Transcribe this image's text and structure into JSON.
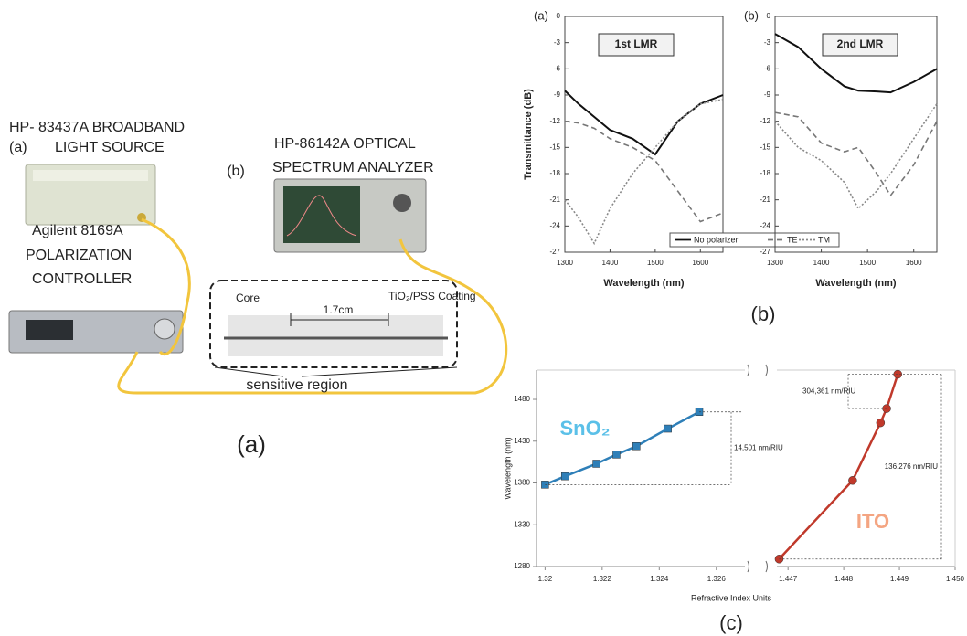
{
  "diagram": {
    "texts": [
      "HP- 83437A BROADBAND",
      "(a)",
      "LIGHT SOURCE",
      "(b)",
      "HP-86142A OPTICAL",
      "SPECTRUM ANALYZER",
      "Agilent 8169A",
      "POLARIZATION",
      "CONTROLLER",
      "Core",
      "1.7cm",
      "TiO₂/PSS Coating",
      "sensitive region",
      "(a)"
    ]
  },
  "chart_data": [
    {
      "type": "line",
      "panel_label": "(a)",
      "box_label": "1st LMR",
      "x_label": "Wavelength (nm)",
      "y_label": "Transmittance (dB)",
      "xlim": [
        1300,
        1650
      ],
      "xticks": [
        1300,
        1400,
        1500,
        1600
      ],
      "ylim": [
        -27,
        0
      ],
      "yticks": [
        0,
        -3,
        -6,
        -9,
        -12,
        -15,
        -18,
        -21,
        -24,
        -27
      ],
      "x": [
        1300,
        1330,
        1365,
        1400,
        1450,
        1500,
        1550,
        1600,
        1650
      ],
      "series": [
        {
          "name": "No polarizer",
          "color": "#111111",
          "dash": "solid",
          "values": [
            -8.5,
            -10,
            -11.5,
            -13,
            -14,
            -15.8,
            -12,
            -10,
            -9
          ]
        },
        {
          "name": "TE",
          "color": "#777777",
          "dash": "dashed",
          "values": [
            -12,
            -12.2,
            -12.8,
            -14,
            -15,
            -16.5,
            -20,
            -23.5,
            -22.5
          ]
        },
        {
          "name": "TM",
          "color": "#888888",
          "dash": "dotted",
          "values": [
            -21,
            -23,
            -26,
            -22,
            -18,
            -15,
            -12,
            -10,
            -9.5
          ]
        }
      ]
    },
    {
      "type": "line",
      "panel_label": "(b)",
      "box_label": "2nd LMR",
      "x_label": "Wavelength (nm)",
      "caption": "(b)",
      "xlim": [
        1300,
        1650
      ],
      "xticks": [
        1300,
        1400,
        1500,
        1600
      ],
      "ylim": [
        -27,
        0
      ],
      "yticks": [
        0,
        -3,
        -6,
        -9,
        -12,
        -15,
        -18,
        -21,
        -24,
        -27
      ],
      "x": [
        1300,
        1350,
        1400,
        1450,
        1480,
        1520,
        1550,
        1600,
        1650
      ],
      "series": [
        {
          "color": "#111111",
          "dash": "solid",
          "values": [
            -2,
            -3.5,
            -6,
            -8,
            -8.5,
            -8.6,
            -8.7,
            -7.5,
            -6
          ]
        },
        {
          "color": "#777777",
          "dash": "dashed",
          "values": [
            -11,
            -11.5,
            -14.5,
            -15.5,
            -15,
            -18,
            -20.5,
            -17,
            -12
          ]
        },
        {
          "color": "#888888",
          "dash": "dotted",
          "values": [
            -12,
            -15,
            -16.5,
            -19,
            -22,
            -20,
            -18,
            -14,
            -10
          ]
        }
      ]
    },
    {
      "type": "scatter",
      "x_label": "Refractive Index Units",
      "y_label": "Wavelength (nm)",
      "caption": "(c)",
      "x_segments": [
        {
          "xlim": [
            1.3197,
            1.327
          ],
          "xticks": [
            1.32,
            1.322,
            1.324,
            1.326
          ]
        },
        {
          "xlim": [
            1.4468,
            1.45
          ],
          "xticks": [
            1.447,
            1.448,
            1.449,
            {
              "value": 1.45,
              "label": "1.450"
            }
          ]
        }
      ],
      "ylim": [
        1280,
        1515
      ],
      "yticks": [
        1280,
        1330,
        1380,
        1430,
        1480
      ],
      "series": [
        {
          "name": "SnO₂",
          "segment": 0,
          "color": "#2e7fb8",
          "label_color": "#5bc0e8",
          "marker": "square",
          "x": [
            1.32,
            1.3207,
            1.3218,
            1.3225,
            1.3232,
            1.3243,
            1.3254
          ],
          "values": [
            1378,
            1388,
            1403,
            1414,
            1424,
            1445,
            1465
          ]
        },
        {
          "name": "ITO",
          "segment": 1,
          "color": "#c0392b",
          "label_color": "#f4a582",
          "marker": "circle",
          "x": [
            1.44684,
            1.44816,
            1.44866,
            1.44877,
            1.44897
          ],
          "values": [
            1289,
            1383,
            1452,
            1469,
            1510
          ]
        }
      ],
      "annotations": [
        "14,501 nm/RIU",
        "304,361 nm/RIU",
        "136,276 nm/RIU"
      ]
    }
  ]
}
